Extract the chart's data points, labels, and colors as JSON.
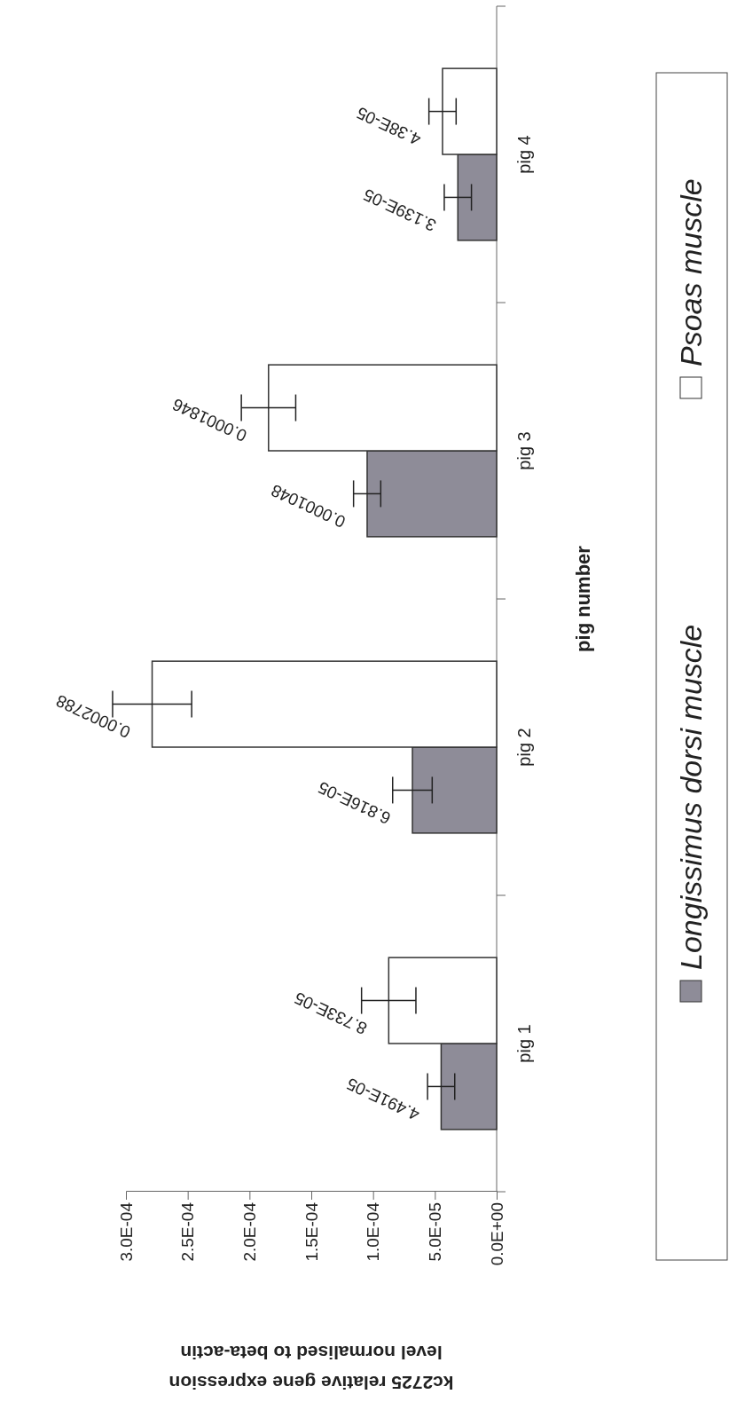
{
  "chart_data": {
    "type": "bar",
    "orientation": "horizontal",
    "xlabel": "kc2725 relative gene expression\nlevel normalised to beta-actin",
    "ylabel": "pig number",
    "categories": [
      "pig 4",
      "pig 3",
      "pig 2",
      "pig 1"
    ],
    "series": [
      {
        "name": "Longissimus dorsi muscle",
        "color": "#8e8c98",
        "values": [
          3.139e-05,
          0.0001048,
          6.816e-05,
          4.491e-05
        ],
        "errors": [
          1.1e-05,
          1.1e-05,
          1.6e-05,
          1.1e-05
        ],
        "value_labels": [
          "3.139E-05",
          "0.0001048",
          "6.816E-05",
          "4.491E-05"
        ]
      },
      {
        "name": "Psoas muscle",
        "color": "#ffffff",
        "values": [
          4.38e-05,
          0.0001846,
          0.0002788,
          8.733e-05
        ],
        "errors": [
          1.1e-05,
          2.2e-05,
          3.2e-05,
          2.2e-05
        ],
        "value_labels": [
          "4.38E-05",
          "0.0001846",
          "0.0002788",
          "8.733E-05"
        ]
      }
    ],
    "xlim": [
      0.0003,
      0
    ],
    "xticks": [
      {
        "value": 0.0003,
        "label": "3.0E-04"
      },
      {
        "value": 0.00025,
        "label": "2.5E-04"
      },
      {
        "value": 0.0002,
        "label": "2.0E-04"
      },
      {
        "value": 0.00015,
        "label": "1.5E-04"
      },
      {
        "value": 0.0001,
        "label": "1.0E-04"
      },
      {
        "value": 5e-05,
        "label": "5.0E-05"
      },
      {
        "value": 0,
        "label": "0.0E+00"
      }
    ],
    "grid": false,
    "legend": "right"
  }
}
